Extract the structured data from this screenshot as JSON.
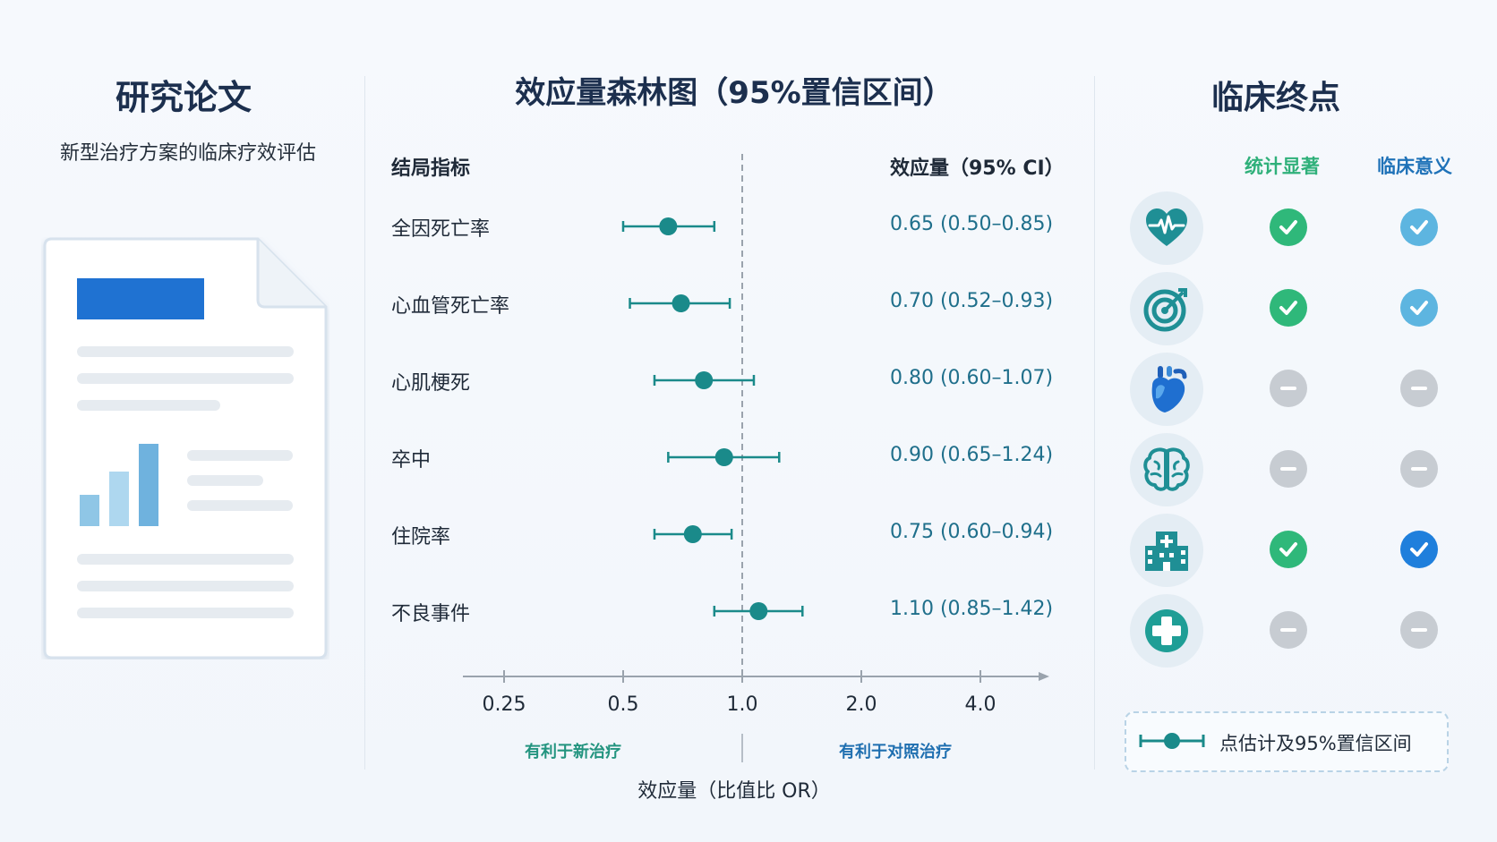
{
  "left": {
    "title": "研究论文",
    "subtitle": "新型治疗方案的临床疗效评估"
  },
  "middle": {
    "title": "效应量森林图（95%置信区间）",
    "col_outcome": "结局指标",
    "col_effect": "效应量（95% CI）",
    "favor_left": "有利于新治疗",
    "favor_right": "有利于对照治疗",
    "xlabel": "效应量（比值比 OR）"
  },
  "right": {
    "title": "临床终点",
    "col_stat": "统计显著",
    "col_clinical": "临床意义",
    "legend": "点估计及95%置信区间"
  },
  "colors": {
    "teal": "#1a8a8a",
    "green_check": "#2fb87a",
    "light_blue_check": "#5db5e0",
    "blue_check": "#1f7fdc",
    "minus_grey": "#c7ccd2",
    "icon_teal": "#1f8f95"
  },
  "rows": [
    {
      "label": "全因死亡率",
      "value": "0.65 (0.50–0.85)",
      "icon": "heart-pulse-icon",
      "stat": "check-green",
      "clinical": "check-lightblue"
    },
    {
      "label": "心血管死亡率",
      "value": "0.70 (0.52–0.93)",
      "icon": "target-icon",
      "stat": "check-green",
      "clinical": "check-lightblue"
    },
    {
      "label": "心肌梗死",
      "value": "0.80 (0.60–1.07)",
      "icon": "anatomical-heart-icon",
      "stat": "minus",
      "clinical": "minus"
    },
    {
      "label": "卒中",
      "value": "0.90 (0.65–1.24)",
      "icon": "brain-icon",
      "stat": "minus",
      "clinical": "minus"
    },
    {
      "label": "住院率",
      "value": "0.75 (0.60–0.94)",
      "icon": "hospital-icon",
      "stat": "check-green",
      "clinical": "check-blue"
    },
    {
      "label": "不良事件",
      "value": "1.10 (0.85–1.42)",
      "icon": "medical-cross-icon",
      "stat": "minus",
      "clinical": "minus"
    }
  ],
  "chart_data": {
    "type": "scatter",
    "title": "效应量森林图（95%置信区间）",
    "xlabel": "效应量（比值比 OR）",
    "x_scale": "log",
    "xlim": [
      0.2,
      5.0
    ],
    "x_ticks": [
      0.25,
      0.5,
      1.0,
      2.0,
      4.0
    ],
    "x_tick_labels": [
      "0.25",
      "0.5",
      "1.0",
      "2.0",
      "4.0"
    ],
    "reference_line": 1.0,
    "categories": [
      "全因死亡率",
      "心血管死亡率",
      "心肌梗死",
      "卒中",
      "住院率",
      "不良事件"
    ],
    "series": [
      {
        "name": "点估计及95%置信区间",
        "points": [
          {
            "est": 0.65,
            "lo": 0.5,
            "hi": 0.85
          },
          {
            "est": 0.7,
            "lo": 0.52,
            "hi": 0.93
          },
          {
            "est": 0.8,
            "lo": 0.6,
            "hi": 1.07
          },
          {
            "est": 0.9,
            "lo": 0.65,
            "hi": 1.24
          },
          {
            "est": 0.75,
            "lo": 0.6,
            "hi": 0.94
          },
          {
            "est": 1.1,
            "lo": 0.85,
            "hi": 1.42
          }
        ]
      }
    ]
  }
}
